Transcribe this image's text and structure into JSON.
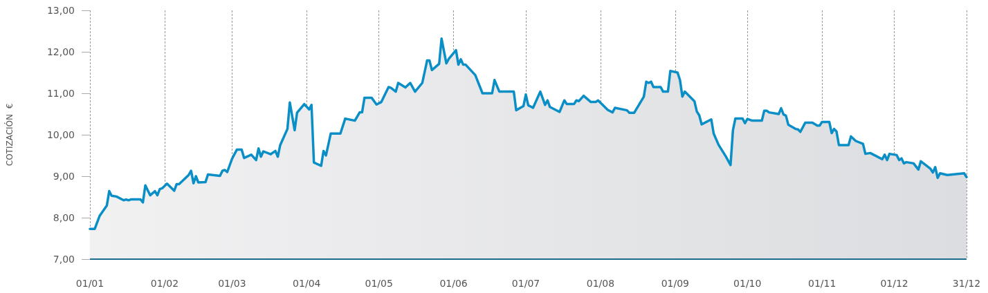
{
  "chart_data": {
    "type": "area",
    "ylabel": "COTIZACIÓN  €",
    "xlim": [
      "--01-01",
      "--12-31"
    ],
    "ylim": [
      7,
      13
    ],
    "xticks": [
      {
        "value": "--01-01",
        "label": "01/01"
      },
      {
        "value": "--02-01",
        "label": "01/02"
      },
      {
        "value": "--03-01",
        "label": "01/03"
      },
      {
        "value": "--04-01",
        "label": "01/04"
      },
      {
        "value": "--05-01",
        "label": "01/05"
      },
      {
        "value": "--06-01",
        "label": "01/06"
      },
      {
        "value": "--07-01",
        "label": "01/07"
      },
      {
        "value": "--08-01",
        "label": "01/08"
      },
      {
        "value": "--09-01",
        "label": "01/09"
      },
      {
        "value": "--10-01",
        "label": "01/10"
      },
      {
        "value": "--11-01",
        "label": "01/11"
      },
      {
        "value": "--12-01",
        "label": "01/12"
      },
      {
        "value": "--12-31",
        "label": "31/12"
      }
    ],
    "yticks": [
      {
        "value": 7,
        "label": "7,00"
      },
      {
        "value": 8,
        "label": "8,00"
      },
      {
        "value": 9,
        "label": "9,00"
      },
      {
        "value": 10,
        "label": "10,00"
      },
      {
        "value": 11,
        "label": "11,00"
      },
      {
        "value": 12,
        "label": "12,00"
      },
      {
        "value": 13,
        "label": "13,00"
      }
    ],
    "grid": "x",
    "marker": "none",
    "line_style": "solid",
    "series": [
      {
        "color": "#0a8ec6",
        "x": [
          "--01-01",
          "--01-03",
          "--01-05",
          "--01-08",
          "--01-09",
          "--01-10",
          "--01-12",
          "--01-15",
          "--01-16",
          "--01-17",
          "--01-18",
          "--01-22",
          "--01-23",
          "--01-24",
          "--01-26",
          "--01-28",
          "--01-29",
          "--01-30",
          "--01-31",
          "--02-02",
          "--02-05",
          "--02-06",
          "--02-07",
          "--02-11",
          "--02-12",
          "--02-13",
          "--02-14",
          "--02-15",
          "--02-18",
          "--02-19",
          "--02-24",
          "--02-25",
          "--02-26",
          "--02-27",
          "--03-01",
          "--03-03",
          "--03-05",
          "--03-06",
          "--03-09",
          "--03-11",
          "--03-12",
          "--03-13",
          "--03-14",
          "--03-17",
          "--03-19",
          "--03-20",
          "--03-21",
          "--03-24",
          "--03-25",
          "--03-27",
          "--03-28",
          "--03-31",
          "--04-02",
          "--04-03",
          "--04-04",
          "--04-07",
          "--04-08",
          "--04-09",
          "--04-11",
          "--04-15",
          "--04-17",
          "--04-21",
          "--04-23",
          "--04-24",
          "--04-25",
          "--04-28",
          "--04-30",
          "--05-02",
          "--05-05",
          "--05-06",
          "--05-08",
          "--05-09",
          "--05-12",
          "--05-14",
          "--05-16",
          "--05-19",
          "--05-21",
          "--05-22",
          "--05-23",
          "--05-26",
          "--05-27",
          "--05-29",
          "--05-30",
          "--06-02",
          "--06-03",
          "--06-04",
          "--06-05",
          "--06-06",
          "--06-10",
          "--06-13",
          "--06-17",
          "--06-18",
          "--06-20",
          "--06-26",
          "--06-27",
          "--06-30",
          "--07-01",
          "--07-02",
          "--07-04",
          "--07-07",
          "--07-09",
          "--07-10",
          "--07-11",
          "--07-15",
          "--07-17",
          "--07-18",
          "--07-21",
          "--07-22",
          "--07-23",
          "--07-25",
          "--07-28",
          "--07-30",
          "--07-31",
          "--08-04",
          "--08-06",
          "--08-07",
          "--08-12",
          "--08-13",
          "--08-15",
          "--08-19",
          "--08-20",
          "--08-21",
          "--08-22",
          "--08-23",
          "--08-26",
          "--08-27",
          "--08-29",
          "--08-30",
          "--09-02",
          "--09-03",
          "--09-04",
          "--09-05",
          "--09-09",
          "--09-10",
          "--09-11",
          "--09-12",
          "--09-16",
          "--09-17",
          "--09-19",
          "--09-22",
          "--09-24",
          "--09-25",
          "--09-26",
          "--09-29",
          "--09-30",
          "--10-01",
          "--10-03",
          "--10-07",
          "--10-08",
          "--10-09",
          "--10-10",
          "--10-14",
          "--10-15",
          "--10-16",
          "--10-17",
          "--10-18",
          "--10-21",
          "--10-22",
          "--10-23",
          "--10-25",
          "--10-28",
          "--10-30",
          "--10-31",
          "--11-01",
          "--11-04",
          "--11-05",
          "--11-06",
          "--11-07",
          "--11-08",
          "--11-12",
          "--11-13",
          "--11-15",
          "--11-18",
          "--11-19",
          "--11-21",
          "--11-26",
          "--11-27",
          "--11-28",
          "--11-29",
          "--12-02",
          "--12-03",
          "--12-04",
          "--12-05",
          "--12-06",
          "--12-09",
          "--12-11",
          "--12-12",
          "--12-16",
          "--12-17",
          "--12-18",
          "--12-19",
          "--12-20",
          "--12-23",
          "--12-30",
          "--12-31"
        ],
        "values": [
          7.73,
          7.73,
          8.04,
          8.29,
          8.64,
          8.53,
          8.51,
          8.42,
          8.44,
          8.42,
          8.44,
          8.44,
          8.37,
          8.78,
          8.54,
          8.64,
          8.54,
          8.69,
          8.71,
          8.82,
          8.65,
          8.81,
          8.81,
          9.03,
          9.13,
          8.83,
          9.0,
          8.85,
          8.86,
          9.04,
          9.01,
          9.13,
          9.15,
          9.1,
          9.42,
          9.64,
          9.64,
          9.44,
          9.52,
          9.39,
          9.67,
          9.47,
          9.6,
          9.53,
          9.61,
          9.47,
          9.75,
          10.14,
          10.78,
          10.11,
          10.53,
          10.74,
          10.61,
          10.72,
          9.33,
          9.25,
          9.61,
          9.5,
          10.03,
          10.03,
          10.39,
          10.34,
          10.54,
          10.54,
          10.89,
          10.89,
          10.73,
          10.79,
          11.15,
          11.13,
          11.04,
          11.25,
          11.14,
          11.25,
          11.04,
          11.25,
          11.79,
          11.79,
          11.56,
          11.71,
          12.32,
          11.72,
          11.83,
          12.04,
          11.69,
          11.82,
          11.69,
          11.69,
          11.44,
          11.0,
          11.0,
          11.32,
          11.04,
          11.04,
          10.59,
          10.69,
          10.97,
          10.71,
          10.65,
          11.04,
          10.72,
          10.83,
          10.67,
          10.55,
          10.83,
          10.74,
          10.74,
          10.83,
          10.81,
          10.94,
          10.79,
          10.79,
          10.83,
          10.6,
          10.54,
          10.65,
          10.59,
          10.53,
          10.53,
          10.92,
          11.28,
          11.25,
          11.28,
          11.15,
          11.15,
          11.04,
          11.04,
          11.54,
          11.5,
          11.32,
          10.92,
          11.04,
          10.81,
          10.56,
          10.47,
          10.25,
          10.37,
          10.03,
          9.76,
          9.48,
          9.27,
          10.11,
          10.39,
          10.39,
          10.28,
          10.38,
          10.34,
          10.34,
          10.58,
          10.58,
          10.54,
          10.5,
          10.64,
          10.49,
          10.46,
          10.24,
          10.14,
          10.13,
          10.07,
          10.29,
          10.29,
          10.22,
          10.22,
          10.31,
          10.31,
          10.04,
          10.14,
          10.08,
          9.75,
          9.75,
          9.96,
          9.85,
          9.78,
          9.54,
          9.56,
          9.41,
          9.52,
          9.39,
          9.54,
          9.51,
          9.39,
          9.43,
          9.31,
          9.34,
          9.31,
          9.16,
          9.36,
          9.18,
          9.09,
          9.22,
          8.96,
          9.07,
          9.03,
          9.07,
          8.98
        ]
      }
    ]
  }
}
